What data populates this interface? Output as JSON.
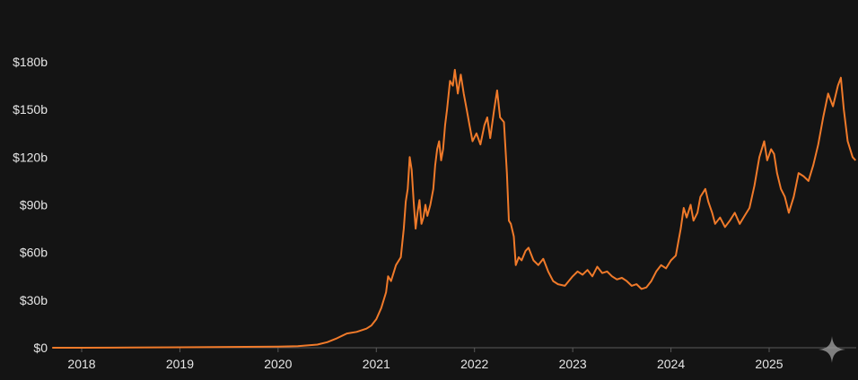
{
  "colors": {
    "background": "#141414",
    "line": "#f07a2a",
    "baseline": "#5a5a5a",
    "text": "#e6e6e6"
  },
  "chart_data": {
    "type": "line",
    "title": "",
    "xlabel": "",
    "ylabel": "",
    "ylim": [
      0,
      190
    ],
    "y_ticks": [
      {
        "value": 0,
        "label": "$0"
      },
      {
        "value": 30,
        "label": "$30b"
      },
      {
        "value": 60,
        "label": "$60b"
      },
      {
        "value": 90,
        "label": "$90b"
      },
      {
        "value": 120,
        "label": "$120b"
      },
      {
        "value": 150,
        "label": "$150b"
      },
      {
        "value": 180,
        "label": "$180b"
      }
    ],
    "x_ticks": [
      {
        "value": 2018,
        "label": "2018"
      },
      {
        "value": 2019,
        "label": "2019"
      },
      {
        "value": 2020,
        "label": "2020"
      },
      {
        "value": 2021,
        "label": "2021"
      },
      {
        "value": 2022,
        "label": "2022"
      },
      {
        "value": 2023,
        "label": "2023"
      },
      {
        "value": 2024,
        "label": "2024"
      },
      {
        "value": 2025,
        "label": "2025"
      }
    ],
    "grid": false,
    "series": [
      {
        "values": [
          [
            2017.7,
            0
          ],
          [
            2018.0,
            0
          ],
          [
            2018.5,
            0.1
          ],
          [
            2019.0,
            0.3
          ],
          [
            2019.5,
            0.5
          ],
          [
            2020.0,
            0.7
          ],
          [
            2020.2,
            1
          ],
          [
            2020.4,
            2
          ],
          [
            2020.5,
            3.5
          ],
          [
            2020.6,
            6
          ],
          [
            2020.7,
            9
          ],
          [
            2020.8,
            10
          ],
          [
            2020.9,
            12
          ],
          [
            2020.95,
            14
          ],
          [
            2021.0,
            18
          ],
          [
            2021.05,
            25
          ],
          [
            2021.1,
            35
          ],
          [
            2021.12,
            45
          ],
          [
            2021.15,
            42
          ],
          [
            2021.2,
            52
          ],
          [
            2021.25,
            57
          ],
          [
            2021.28,
            75
          ],
          [
            2021.3,
            92
          ],
          [
            2021.32,
            100
          ],
          [
            2021.34,
            120
          ],
          [
            2021.36,
            112
          ],
          [
            2021.38,
            92
          ],
          [
            2021.4,
            75
          ],
          [
            2021.42,
            85
          ],
          [
            2021.44,
            93
          ],
          [
            2021.46,
            78
          ],
          [
            2021.48,
            82
          ],
          [
            2021.5,
            90
          ],
          [
            2021.52,
            83
          ],
          [
            2021.55,
            90
          ],
          [
            2021.58,
            100
          ],
          [
            2021.6,
            115
          ],
          [
            2021.62,
            125
          ],
          [
            2021.64,
            130
          ],
          [
            2021.66,
            118
          ],
          [
            2021.68,
            125
          ],
          [
            2021.7,
            140
          ],
          [
            2021.72,
            150
          ],
          [
            2021.75,
            168
          ],
          [
            2021.78,
            165
          ],
          [
            2021.8,
            175
          ],
          [
            2021.83,
            160
          ],
          [
            2021.86,
            172
          ],
          [
            2021.89,
            160
          ],
          [
            2021.92,
            150
          ],
          [
            2021.95,
            140
          ],
          [
            2021.98,
            130
          ],
          [
            2022.02,
            135
          ],
          [
            2022.06,
            128
          ],
          [
            2022.1,
            140
          ],
          [
            2022.13,
            145
          ],
          [
            2022.16,
            132
          ],
          [
            2022.2,
            150
          ],
          [
            2022.23,
            162
          ],
          [
            2022.26,
            145
          ],
          [
            2022.3,
            142
          ],
          [
            2022.33,
            110
          ],
          [
            2022.35,
            80
          ],
          [
            2022.37,
            78
          ],
          [
            2022.4,
            70
          ],
          [
            2022.42,
            52
          ],
          [
            2022.45,
            57
          ],
          [
            2022.48,
            55
          ],
          [
            2022.52,
            61
          ],
          [
            2022.55,
            63
          ],
          [
            2022.6,
            55
          ],
          [
            2022.65,
            52
          ],
          [
            2022.7,
            56
          ],
          [
            2022.75,
            48
          ],
          [
            2022.8,
            42
          ],
          [
            2022.85,
            40
          ],
          [
            2022.92,
            39
          ],
          [
            2023.0,
            45
          ],
          [
            2023.05,
            48
          ],
          [
            2023.1,
            46
          ],
          [
            2023.15,
            49
          ],
          [
            2023.2,
            45
          ],
          [
            2023.25,
            51
          ],
          [
            2023.3,
            47
          ],
          [
            2023.35,
            48
          ],
          [
            2023.4,
            45
          ],
          [
            2023.45,
            43
          ],
          [
            2023.5,
            44
          ],
          [
            2023.55,
            42
          ],
          [
            2023.6,
            39
          ],
          [
            2023.65,
            40
          ],
          [
            2023.7,
            37
          ],
          [
            2023.75,
            38
          ],
          [
            2023.8,
            42
          ],
          [
            2023.85,
            48
          ],
          [
            2023.9,
            52
          ],
          [
            2023.95,
            50
          ],
          [
            2024.0,
            55
          ],
          [
            2024.05,
            58
          ],
          [
            2024.1,
            75
          ],
          [
            2024.13,
            88
          ],
          [
            2024.16,
            82
          ],
          [
            2024.2,
            90
          ],
          [
            2024.23,
            80
          ],
          [
            2024.27,
            85
          ],
          [
            2024.3,
            95
          ],
          [
            2024.35,
            100
          ],
          [
            2024.38,
            92
          ],
          [
            2024.42,
            85
          ],
          [
            2024.45,
            78
          ],
          [
            2024.5,
            82
          ],
          [
            2024.55,
            76
          ],
          [
            2024.6,
            80
          ],
          [
            2024.65,
            85
          ],
          [
            2024.7,
            78
          ],
          [
            2024.75,
            83
          ],
          [
            2024.8,
            88
          ],
          [
            2024.85,
            102
          ],
          [
            2024.9,
            120
          ],
          [
            2024.95,
            130
          ],
          [
            2024.98,
            118
          ],
          [
            2025.02,
            125
          ],
          [
            2025.05,
            122
          ],
          [
            2025.08,
            110
          ],
          [
            2025.12,
            100
          ],
          [
            2025.16,
            95
          ],
          [
            2025.2,
            85
          ],
          [
            2025.25,
            95
          ],
          [
            2025.3,
            110
          ],
          [
            2025.35,
            108
          ],
          [
            2025.4,
            105
          ],
          [
            2025.45,
            115
          ],
          [
            2025.5,
            128
          ],
          [
            2025.55,
            145
          ],
          [
            2025.6,
            160
          ],
          [
            2025.65,
            152
          ],
          [
            2025.7,
            165
          ],
          [
            2025.73,
            170
          ],
          [
            2025.76,
            150
          ],
          [
            2025.8,
            130
          ],
          [
            2025.85,
            120
          ],
          [
            2025.88,
            118
          ]
        ]
      }
    ]
  }
}
